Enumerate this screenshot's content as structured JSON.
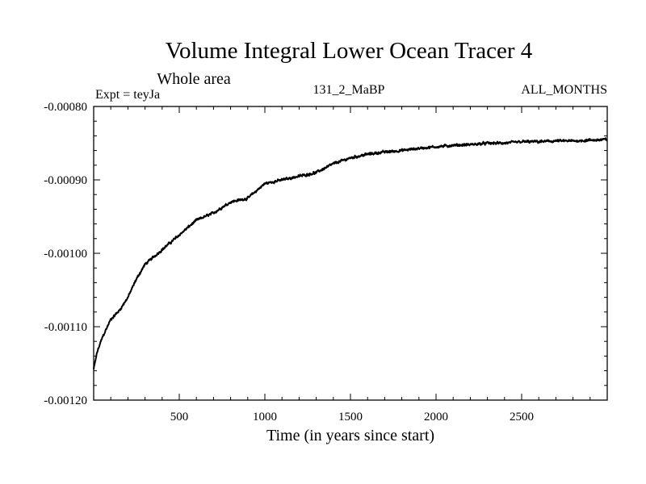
{
  "chart_data": {
    "type": "line",
    "title": "Volume Integral Lower Ocean Tracer 4",
    "subtitle": "Whole area",
    "expt_label": "Expt = teyJa",
    "run_label": "131_2_MaBP",
    "months_label": "ALL_MONTHS",
    "xlabel": "Time (in years since start)",
    "ylabel": "",
    "xlim": [
      0,
      3000
    ],
    "ylim": [
      -0.0012,
      -0.0008
    ],
    "x_ticks": [
      500,
      1000,
      1500,
      2000,
      2500
    ],
    "x_tick_labels": [
      "500",
      "1000",
      "1500",
      "2000",
      "2500"
    ],
    "y_ticks": [
      -0.0012,
      -0.0011,
      -0.001,
      -0.0009,
      -0.0008
    ],
    "y_tick_labels": [
      "-0.00120",
      "-0.00110",
      "-0.00100",
      "-0.00090",
      "-0.00080"
    ],
    "grid": false,
    "series": [
      {
        "name": "Lower Ocean Tracer 4",
        "x": [
          0,
          20,
          50,
          80,
          100,
          150,
          200,
          250,
          300,
          400,
          500,
          600,
          700,
          800,
          900,
          1000,
          1100,
          1200,
          1300,
          1400,
          1500,
          1600,
          1700,
          1800,
          1900,
          2000,
          2100,
          2200,
          2300,
          2400,
          2500,
          2600,
          2700,
          2800,
          2900,
          3000
        ],
        "values": [
          -0.001158,
          -0.001135,
          -0.001115,
          -0.0011,
          -0.00109,
          -0.001078,
          -0.00106,
          -0.001035,
          -0.001015,
          -0.000995,
          -0.000975,
          -0.000955,
          -0.000945,
          -0.00093,
          -0.000925,
          -0.000905,
          -0.0009,
          -0.000895,
          -0.00089,
          -0.000878,
          -0.00087,
          -0.000865,
          -0.000862,
          -0.00086,
          -0.000857,
          -0.000855,
          -0.000853,
          -0.000852,
          -0.00085,
          -0.00085,
          -0.000848,
          -0.000848,
          -0.000847,
          -0.000847,
          -0.000846,
          -0.000845
        ]
      }
    ]
  }
}
